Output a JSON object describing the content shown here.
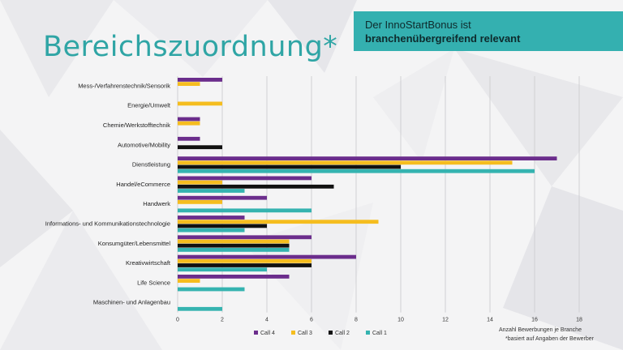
{
  "page": {
    "title": "Bereichszuordnung*",
    "callout_line1": "Der InnoStartBonus ist",
    "callout_line2": "branchenübergreifend relevant",
    "footnote": "*basiert auf Angaben der Bewerber"
  },
  "chart_data": {
    "type": "bar",
    "orientation": "horizontal",
    "xlabel": "Anzahl Bewerbungen je Branche",
    "xlim": [
      0,
      18
    ],
    "xticks": [
      0,
      2,
      4,
      6,
      8,
      10,
      12,
      14,
      16,
      18
    ],
    "grid": true,
    "legend_position": "bottom",
    "categories": [
      "Mess-/Verfahrenstechnik/Sensorik",
      "Energie/Umwelt",
      "Chemie/Werkstofftechnik",
      "Automotive/Mobility",
      "Dienstleistung",
      "Handel/eCommerce",
      "Handwerk",
      "Informations- und Kommunikationstechnologie",
      "Konsumgüter/Lebensmittel",
      "Kreativwirtschaft",
      "Life Science",
      "Maschinen- und Anlagenbau"
    ],
    "series": [
      {
        "name": "Call 4",
        "color": "#6b2d8c",
        "values": [
          2,
          0,
          1,
          1,
          17,
          6,
          4,
          3,
          6,
          8,
          5,
          0
        ]
      },
      {
        "name": "Call 3",
        "color": "#f5bd1f",
        "values": [
          1,
          2,
          1,
          0,
          15,
          2,
          2,
          9,
          5,
          6,
          1,
          0
        ]
      },
      {
        "name": "Call 2",
        "color": "#111111",
        "values": [
          0,
          0,
          0,
          2,
          10,
          7,
          0,
          4,
          5,
          6,
          0,
          0
        ]
      },
      {
        "name": "Call 1",
        "color": "#35b3b0",
        "values": [
          0,
          0,
          0,
          0,
          16,
          3,
          6,
          3,
          5,
          4,
          3,
          2
        ]
      }
    ]
  }
}
